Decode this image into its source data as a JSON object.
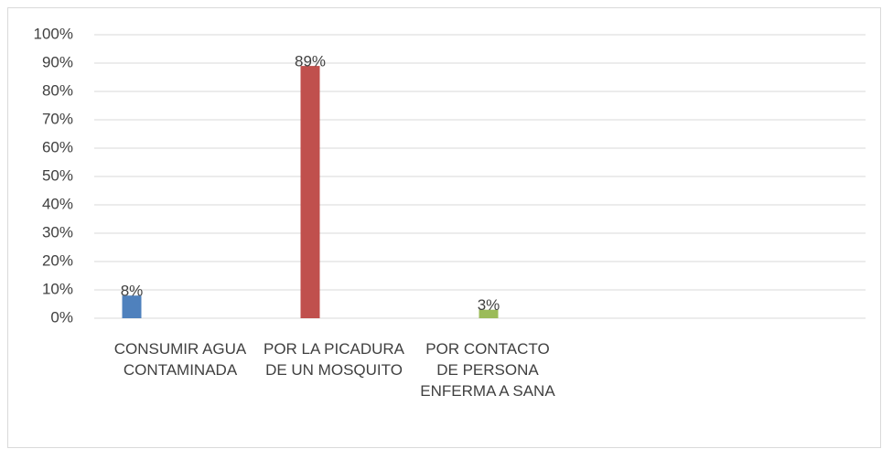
{
  "chart_data": {
    "type": "bar",
    "categories": [
      "CONSUMIR AGUA CONTAMINADA",
      "POR LA PICADURA DE UN MOSQUITO",
      "POR CONTACTO DE PERSONA ENFERMA A SANA"
    ],
    "values": [
      8,
      89,
      3
    ],
    "value_labels": [
      "8%",
      "89%",
      "3%"
    ],
    "colors": [
      "#4f81bd",
      "#c0504d",
      "#9bbb59"
    ],
    "ylim": [
      0,
      100
    ],
    "yticks": [
      {
        "value": 0,
        "label": "0%"
      },
      {
        "value": 10,
        "label": "10%"
      },
      {
        "value": 20,
        "label": "20%"
      },
      {
        "value": 30,
        "label": "30%"
      },
      {
        "value": 40,
        "label": "40%"
      },
      {
        "value": 50,
        "label": "50%"
      },
      {
        "value": 60,
        "label": "60%"
      },
      {
        "value": 70,
        "label": "70%"
      },
      {
        "value": 80,
        "label": "80%"
      },
      {
        "value": 90,
        "label": "90%"
      },
      {
        "value": 100,
        "label": "100%"
      }
    ],
    "grid": true
  }
}
